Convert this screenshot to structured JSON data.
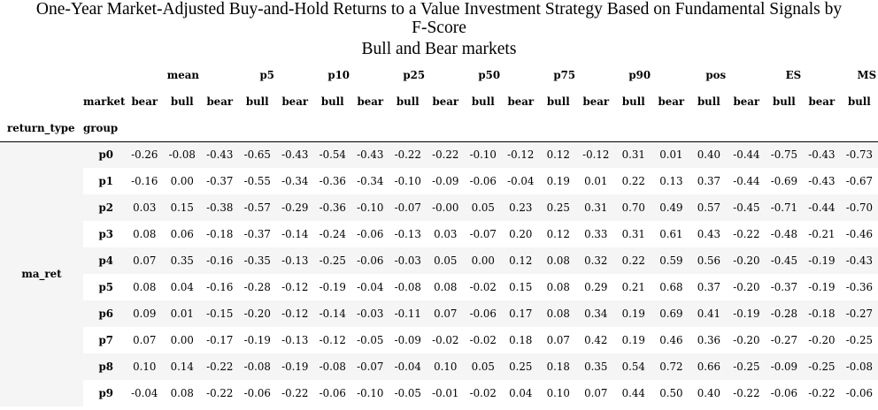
{
  "title": {
    "line1": "One-Year Market-Adjusted Buy-and-Hold Returns to a Value Investment Strategy Based on Fundamental Signals by",
    "line2": "F-Score",
    "line3": "Bull and Bear markets"
  },
  "header": {
    "metrics": [
      "mean",
      "p5",
      "p10",
      "p25",
      "p50",
      "p75",
      "p90",
      "pos",
      "ES",
      "MS"
    ],
    "market_label": "market",
    "market_values": [
      "bear",
      "bull"
    ],
    "return_type_label": "return_type",
    "group_label": "group"
  },
  "body": {
    "return_type": "ma_ret",
    "rows": [
      {
        "group": "p0",
        "values": [
          "-0.26",
          "-0.08",
          "-0.43",
          "-0.65",
          "-0.43",
          "-0.54",
          "-0.43",
          "-0.22",
          "-0.22",
          "-0.10",
          "-0.12",
          "0.12",
          "-0.12",
          "0.31",
          "0.01",
          "0.40",
          "-0.44",
          "-0.75",
          "-0.43",
          "-0.73"
        ]
      },
      {
        "group": "p1",
        "values": [
          "-0.16",
          "0.00",
          "-0.37",
          "-0.55",
          "-0.34",
          "-0.36",
          "-0.34",
          "-0.10",
          "-0.09",
          "-0.06",
          "-0.04",
          "0.19",
          "0.01",
          "0.22",
          "0.13",
          "0.37",
          "-0.44",
          "-0.69",
          "-0.43",
          "-0.67"
        ]
      },
      {
        "group": "p2",
        "values": [
          "0.03",
          "0.15",
          "-0.38",
          "-0.57",
          "-0.29",
          "-0.36",
          "-0.10",
          "-0.07",
          "-0.00",
          "0.05",
          "0.23",
          "0.25",
          "0.31",
          "0.70",
          "0.49",
          "0.57",
          "-0.45",
          "-0.71",
          "-0.44",
          "-0.70"
        ]
      },
      {
        "group": "p3",
        "values": [
          "0.08",
          "0.06",
          "-0.18",
          "-0.37",
          "-0.14",
          "-0.24",
          "-0.06",
          "-0.13",
          "0.03",
          "-0.07",
          "0.20",
          "0.12",
          "0.33",
          "0.31",
          "0.61",
          "0.43",
          "-0.22",
          "-0.48",
          "-0.21",
          "-0.46"
        ]
      },
      {
        "group": "p4",
        "values": [
          "0.07",
          "0.35",
          "-0.16",
          "-0.35",
          "-0.13",
          "-0.25",
          "-0.06",
          "-0.03",
          "0.05",
          "0.00",
          "0.12",
          "0.08",
          "0.32",
          "0.22",
          "0.59",
          "0.56",
          "-0.20",
          "-0.45",
          "-0.19",
          "-0.43"
        ]
      },
      {
        "group": "p5",
        "values": [
          "0.08",
          "0.04",
          "-0.16",
          "-0.28",
          "-0.12",
          "-0.19",
          "-0.04",
          "-0.08",
          "0.08",
          "-0.02",
          "0.15",
          "0.08",
          "0.29",
          "0.21",
          "0.68",
          "0.37",
          "-0.20",
          "-0.37",
          "-0.19",
          "-0.36"
        ]
      },
      {
        "group": "p6",
        "values": [
          "0.09",
          "0.01",
          "-0.15",
          "-0.20",
          "-0.12",
          "-0.14",
          "-0.03",
          "-0.11",
          "0.07",
          "-0.06",
          "0.17",
          "0.08",
          "0.34",
          "0.19",
          "0.69",
          "0.41",
          "-0.19",
          "-0.28",
          "-0.18",
          "-0.27"
        ]
      },
      {
        "group": "p7",
        "values": [
          "0.07",
          "0.00",
          "-0.17",
          "-0.19",
          "-0.13",
          "-0.12",
          "-0.05",
          "-0.09",
          "-0.02",
          "-0.02",
          "0.18",
          "0.07",
          "0.42",
          "0.19",
          "0.46",
          "0.36",
          "-0.20",
          "-0.27",
          "-0.20",
          "-0.25"
        ]
      },
      {
        "group": "p8",
        "values": [
          "0.10",
          "0.14",
          "-0.22",
          "-0.08",
          "-0.19",
          "-0.08",
          "-0.07",
          "-0.04",
          "0.10",
          "0.05",
          "0.25",
          "0.18",
          "0.35",
          "0.54",
          "0.72",
          "0.66",
          "-0.25",
          "-0.09",
          "-0.25",
          "-0.08"
        ]
      },
      {
        "group": "p9",
        "values": [
          "-0.04",
          "0.08",
          "-0.22",
          "-0.06",
          "-0.22",
          "-0.06",
          "-0.10",
          "-0.05",
          "-0.01",
          "-0.02",
          "0.04",
          "0.10",
          "0.07",
          "0.44",
          "0.50",
          "0.40",
          "-0.22",
          "-0.06",
          "-0.22",
          "-0.06"
        ]
      }
    ]
  }
}
